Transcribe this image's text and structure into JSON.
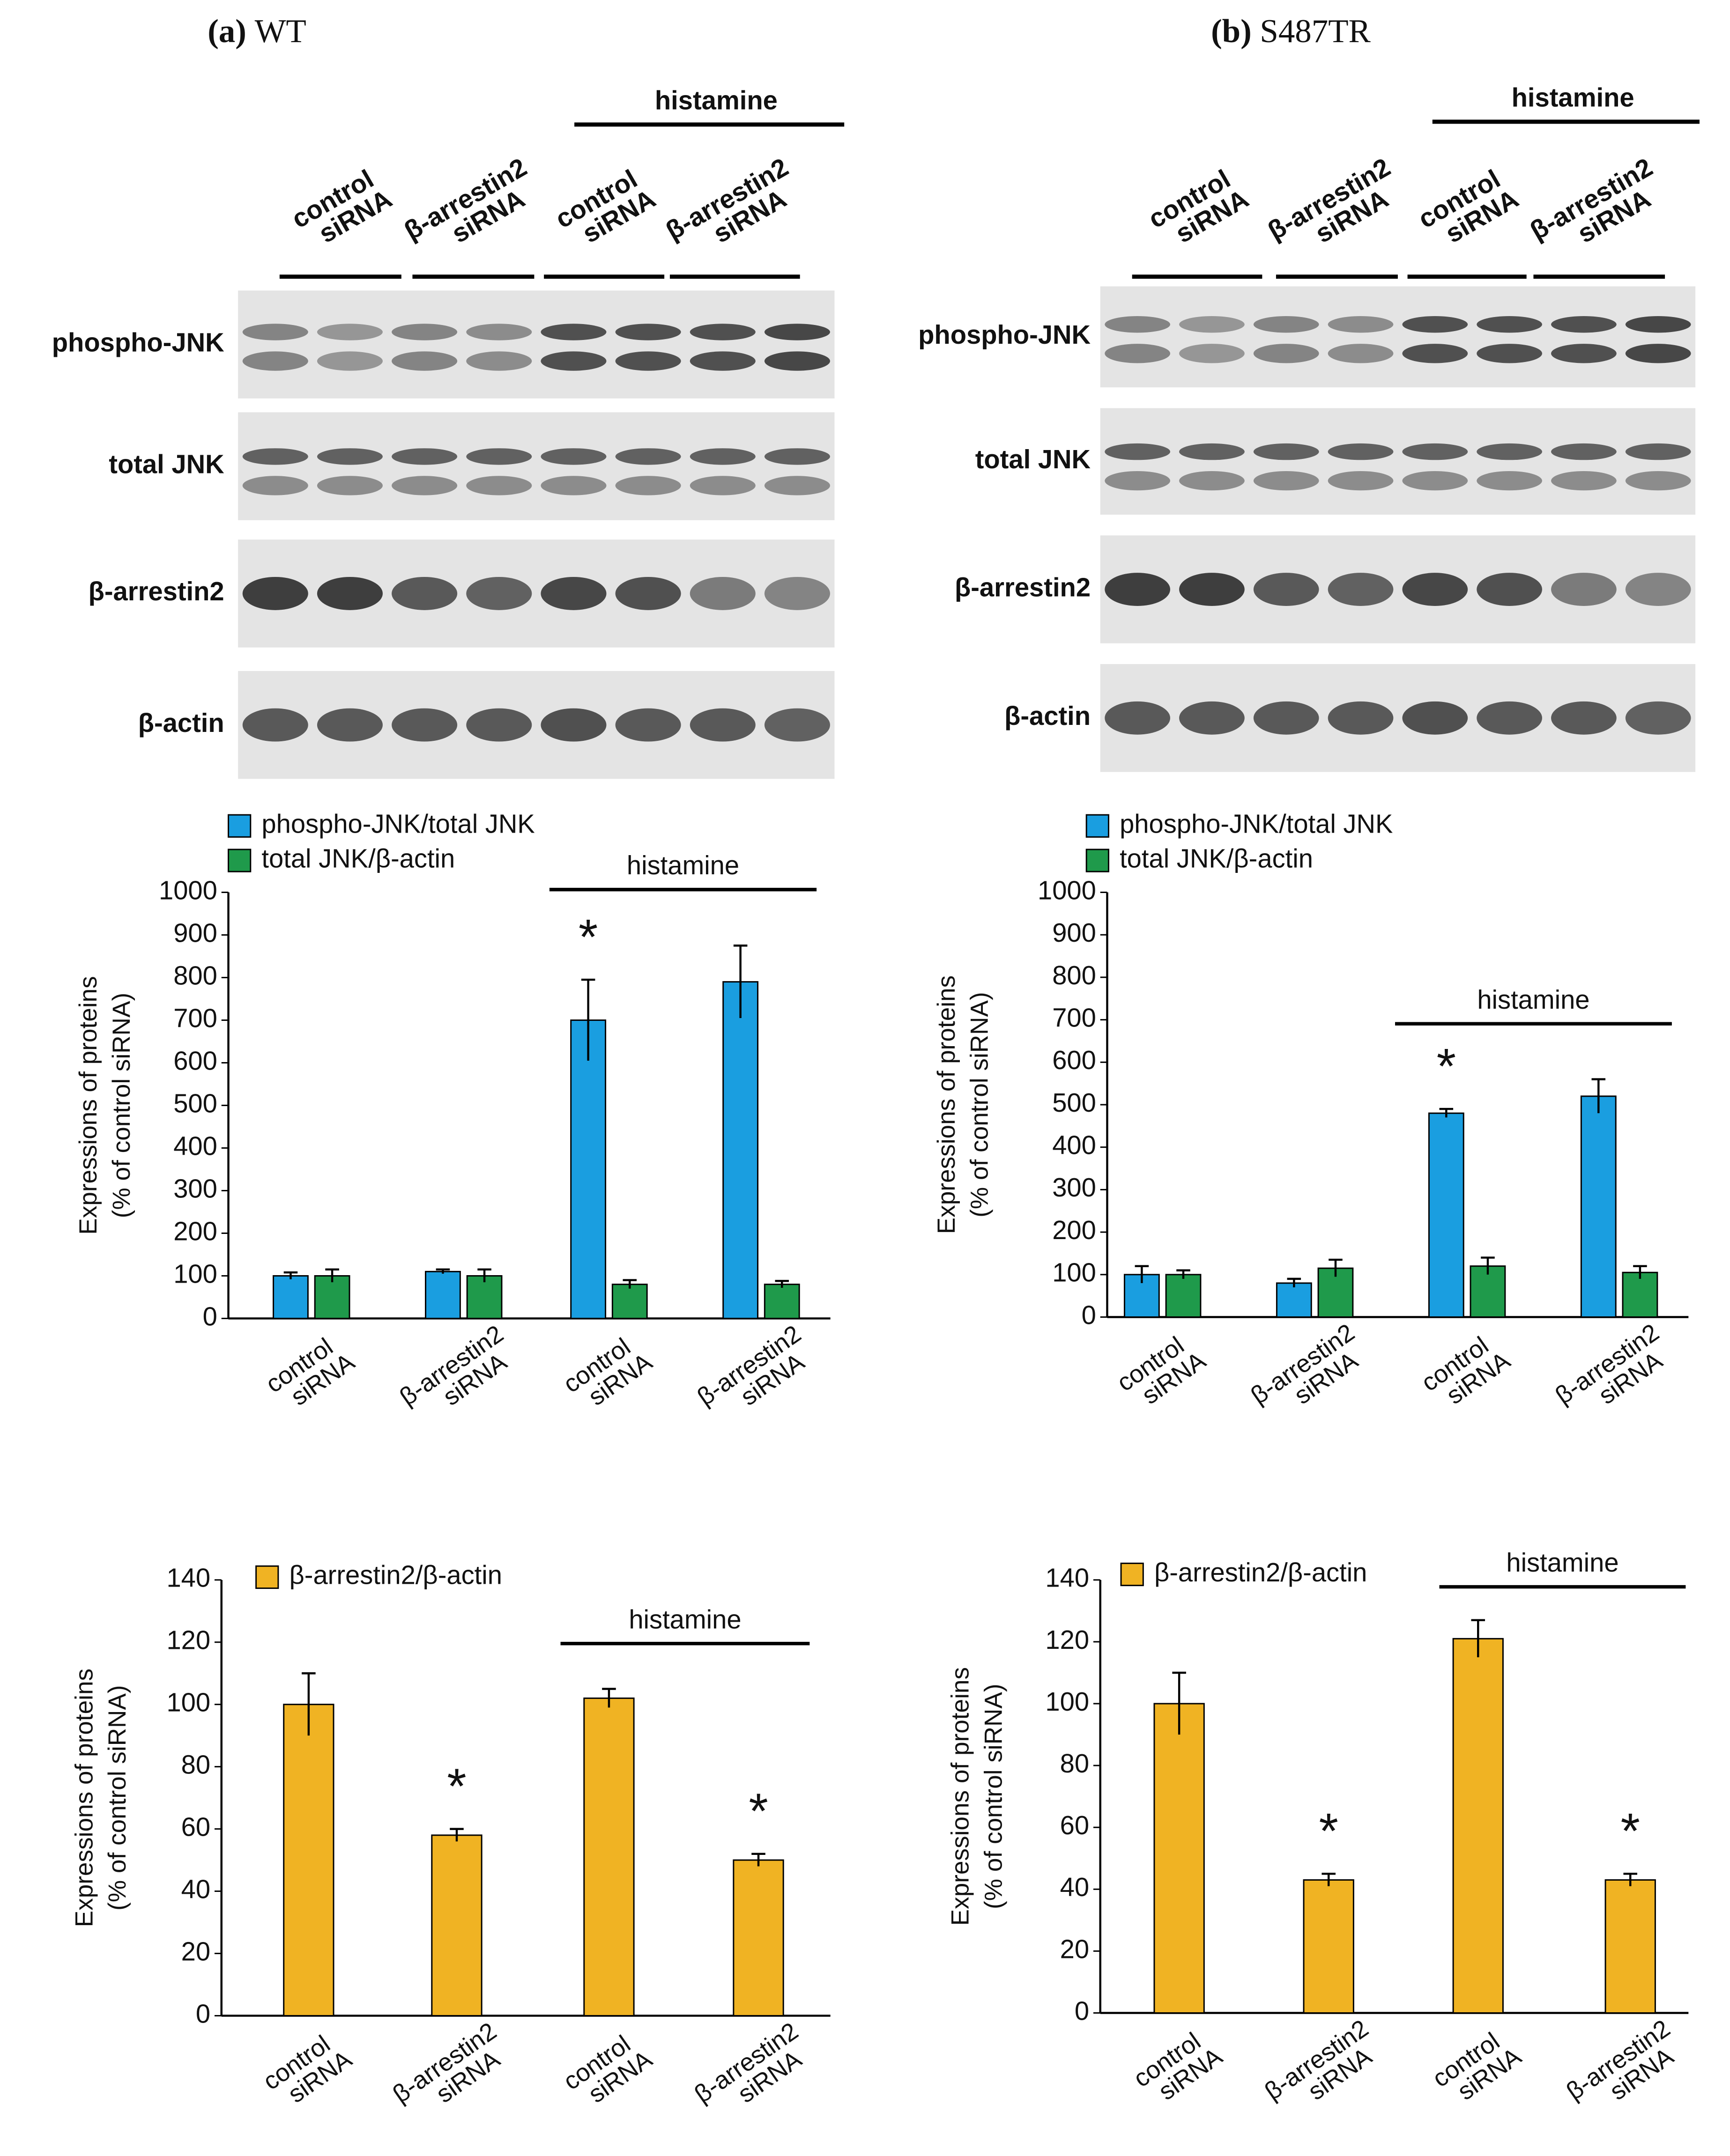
{
  "panels": [
    {
      "label": "(a)",
      "name": "WT",
      "blot": {
        "treatment": "histamine",
        "lanes": [
          "control siRNA",
          "β-arrestin2 siRNA",
          "control siRNA",
          "β-arrestin2 siRNA"
        ],
        "rows": [
          "phospho-JNK",
          "total JNK",
          "β-arrestin2",
          "β-actin"
        ]
      }
    },
    {
      "label": "(b)",
      "name": "S487TR",
      "blot": {
        "treatment": "histamine",
        "lanes": [
          "control siRNA",
          "β-arrestin2 siRNA",
          "control siRNA",
          "β-arrestin2 siRNA"
        ],
        "rows": [
          "phospho-JNK",
          "total JNK",
          "β-arrestin2",
          "β-actin"
        ]
      }
    }
  ],
  "chart_data": [
    {
      "type": "bar",
      "ylabel": [
        "Expressions of proteins",
        "(% of  control siRNA)"
      ],
      "treatment": "histamine",
      "categories": [
        "control siRNA",
        "β-arrestin2 siRNA",
        "control siRNA",
        "β-arrestin2 siRNA"
      ],
      "series": [
        {
          "name": "phospho-JNK/total JNK",
          "color": "#1a9ee0",
          "values": [
            100,
            110,
            700,
            790
          ],
          "errors": [
            8,
            5,
            95,
            85
          ],
          "stars": [
            null,
            null,
            "*",
            null
          ]
        },
        {
          "name": "total JNK/β-actin",
          "color": "#1f9a4b",
          "values": [
            100,
            100,
            80,
            80
          ],
          "errors": [
            15,
            15,
            10,
            8
          ],
          "stars": [
            null,
            null,
            null,
            null
          ]
        }
      ],
      "ylim": [
        0,
        1000
      ],
      "yticks": [
        0,
        100,
        200,
        300,
        400,
        500,
        600,
        700,
        800,
        900,
        1000
      ]
    },
    {
      "type": "bar",
      "ylabel": [
        "Expressions of proteins",
        "(% of  control siRNA)"
      ],
      "treatment": "histamine",
      "categories": [
        "control siRNA",
        "β-arrestin2 siRNA",
        "control siRNA",
        "β-arrestin2 siRNA"
      ],
      "series": [
        {
          "name": "phospho-JNK/total JNK",
          "color": "#1a9ee0",
          "values": [
            100,
            80,
            480,
            520
          ],
          "errors": [
            20,
            10,
            10,
            40
          ],
          "stars": [
            null,
            null,
            "*",
            null
          ]
        },
        {
          "name": "total JNK/β-actin",
          "color": "#1f9a4b",
          "values": [
            100,
            115,
            120,
            105
          ],
          "errors": [
            10,
            20,
            20,
            15
          ],
          "stars": [
            null,
            null,
            null,
            null
          ]
        }
      ],
      "ylim": [
        0,
        1000
      ],
      "yticks": [
        0,
        100,
        200,
        300,
        400,
        500,
        600,
        700,
        800,
        900,
        1000
      ]
    },
    {
      "type": "bar",
      "ylabel": [
        "Expressions of proteins",
        "(% of  control siRNA)"
      ],
      "treatment": "histamine",
      "categories": [
        "control siRNA",
        "β-arrestin2 siRNA",
        "control siRNA",
        "β-arrestin2 siRNA"
      ],
      "series": [
        {
          "name": "β-arrestin2/β-actin",
          "color": "#f0b323",
          "values": [
            100,
            58,
            102,
            50
          ],
          "errors": [
            10,
            2,
            3,
            2
          ],
          "stars": [
            null,
            "*",
            null,
            "*"
          ]
        }
      ],
      "ylim": [
        0,
        140
      ],
      "yticks": [
        0,
        20,
        40,
        60,
        80,
        100,
        120,
        140
      ]
    },
    {
      "type": "bar",
      "ylabel": [
        "Expressions of proteins",
        "(% of  control siRNA)"
      ],
      "treatment": "histamine",
      "categories": [
        "control siRNA",
        "β-arrestin2 siRNA",
        "control siRNA",
        "β-arrestin2 siRNA"
      ],
      "series": [
        {
          "name": "β-arrestin2/β-actin",
          "color": "#f0b323",
          "values": [
            100,
            43,
            121,
            43
          ],
          "errors": [
            10,
            2,
            6,
            2
          ],
          "stars": [
            null,
            "*",
            null,
            "*"
          ]
        }
      ],
      "ylim": [
        0,
        140
      ],
      "yticks": [
        0,
        20,
        40,
        60,
        80,
        100,
        120,
        140
      ]
    }
  ]
}
